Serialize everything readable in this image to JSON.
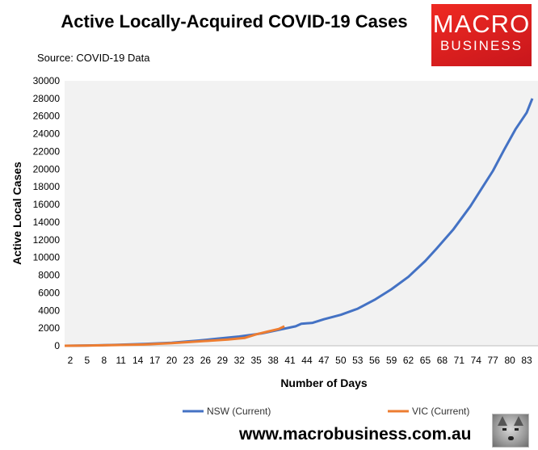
{
  "header": {
    "title": "Active Locally-Acquired COVID-19 Cases",
    "source": "Source: COVID-19 Data"
  },
  "logo": {
    "line1": "MACRO",
    "line2": "BUSINESS"
  },
  "footer": {
    "url": "www.macrobusiness.com.au"
  },
  "chart_data": {
    "type": "line",
    "xlabel": "Number of Days",
    "ylabel": "Active Local Cases",
    "xlim": [
      1,
      85
    ],
    "ylim": [
      0,
      30000
    ],
    "y_ticks": [
      0,
      2000,
      4000,
      6000,
      8000,
      10000,
      12000,
      14000,
      16000,
      18000,
      20000,
      22000,
      24000,
      26000,
      28000,
      30000
    ],
    "x_ticks": [
      2,
      5,
      8,
      11,
      14,
      17,
      20,
      23,
      26,
      29,
      32,
      35,
      38,
      41,
      44,
      47,
      50,
      53,
      56,
      59,
      62,
      65,
      68,
      71,
      74,
      77,
      80,
      83
    ],
    "grid": false,
    "legend_position": "bottom",
    "series": [
      {
        "name": "NSW (Current)",
        "color": "#4472c4",
        "points": [
          [
            1,
            0
          ],
          [
            5,
            40
          ],
          [
            10,
            100
          ],
          [
            15,
            200
          ],
          [
            20,
            350
          ],
          [
            25,
            600
          ],
          [
            28,
            800
          ],
          [
            32,
            1050
          ],
          [
            36,
            1400
          ],
          [
            39,
            1800
          ],
          [
            42,
            2200
          ],
          [
            43,
            2500
          ],
          [
            45,
            2600
          ],
          [
            47,
            3000
          ],
          [
            50,
            3500
          ],
          [
            53,
            4200
          ],
          [
            56,
            5200
          ],
          [
            59,
            6400
          ],
          [
            62,
            7800
          ],
          [
            65,
            9600
          ],
          [
            67,
            11000
          ],
          [
            70,
            13200
          ],
          [
            73,
            15800
          ],
          [
            75,
            17800
          ],
          [
            77,
            19800
          ],
          [
            79,
            22200
          ],
          [
            81,
            24500
          ],
          [
            83,
            26400
          ],
          [
            84,
            28000
          ]
        ]
      },
      {
        "name": "VIC (Current)",
        "color": "#ed7d31",
        "points": [
          [
            1,
            0
          ],
          [
            5,
            30
          ],
          [
            10,
            80
          ],
          [
            15,
            150
          ],
          [
            20,
            300
          ],
          [
            25,
            500
          ],
          [
            30,
            700
          ],
          [
            33,
            900
          ],
          [
            35,
            1300
          ],
          [
            37,
            1600
          ],
          [
            39,
            1900
          ],
          [
            40,
            2200
          ]
        ]
      }
    ]
  }
}
